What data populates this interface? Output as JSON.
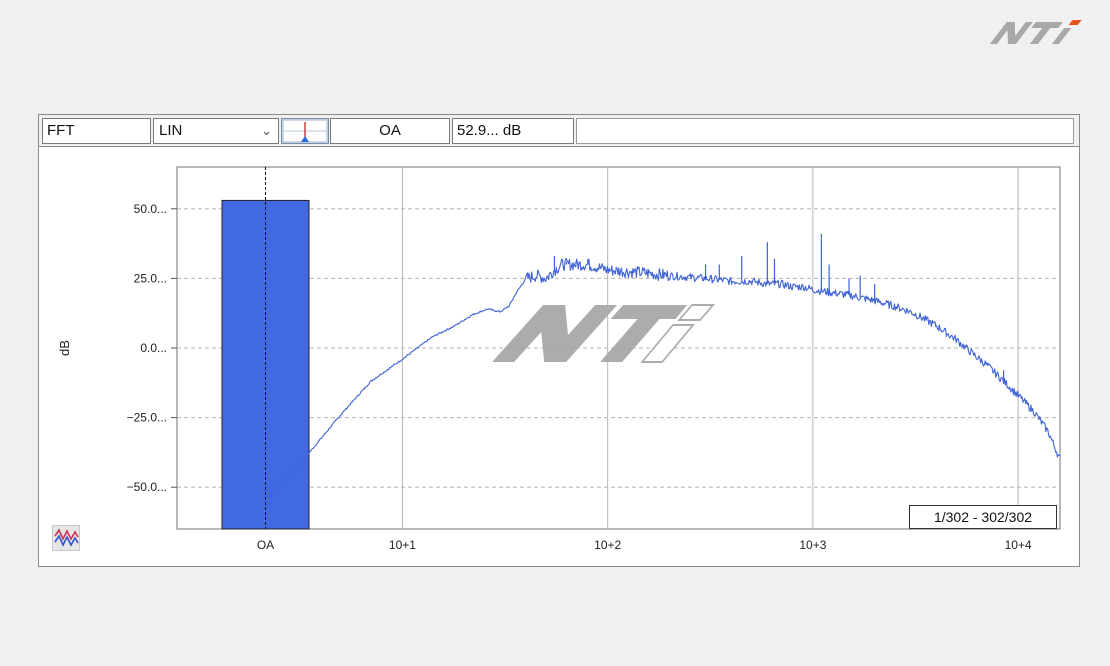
{
  "toolbar": {
    "mode": "FFT",
    "scale": "LIN",
    "band": "OA",
    "value": "52.9... dB"
  },
  "icons": {
    "logo": "nti-logo",
    "cursor": "cursor-marker-icon",
    "scale_dropdown": "chevron-down-icon",
    "spectrum": "spectrum-view-icon"
  },
  "counter": "1/302 - 302/302",
  "colors": {
    "bar": "#4169e1",
    "trace": "#3f63d6",
    "grid": "#b5b5b5",
    "background": "#f0f0f0"
  },
  "chart_data": {
    "type": "bar+line",
    "ylabel": "dB",
    "ylim": [
      -65,
      65
    ],
    "yticks": [
      {
        "value": 50,
        "label": "50.0..."
      },
      {
        "value": 25,
        "label": "25.0..."
      },
      {
        "value": 0,
        "label": "0.0..."
      },
      {
        "value": -25,
        "label": "−25.0..."
      },
      {
        "value": -50,
        "label": "−50.0..."
      }
    ],
    "bar": {
      "category": "OA",
      "value": 53
    },
    "x_scale": "log",
    "xlim_hz": [
      2,
      16000
    ],
    "xticks": [
      {
        "value": 10,
        "label": "10+1"
      },
      {
        "value": 100,
        "label": "10+2"
      },
      {
        "value": 1000,
        "label": "10+3"
      },
      {
        "value": 10000,
        "label": "10+4"
      }
    ],
    "series": [
      {
        "points": [
          [
            2.2,
            -54
          ],
          [
            3.3,
            -40
          ],
          [
            5,
            -24
          ],
          [
            7,
            -12
          ],
          [
            10,
            -4
          ],
          [
            14,
            4
          ],
          [
            18,
            8
          ],
          [
            22,
            12
          ],
          [
            26,
            14
          ],
          [
            30,
            13
          ],
          [
            33,
            15
          ],
          [
            36,
            20
          ],
          [
            40,
            25
          ],
          [
            45,
            26
          ],
          [
            50,
            25
          ],
          [
            55,
            28
          ],
          [
            60,
            30
          ],
          [
            70,
            30
          ],
          [
            80,
            30
          ],
          [
            100,
            28
          ],
          [
            150,
            27
          ],
          [
            200,
            26
          ],
          [
            300,
            25
          ],
          [
            400,
            24
          ],
          [
            500,
            24
          ],
          [
            600,
            23
          ],
          [
            700,
            23
          ],
          [
            800,
            22
          ],
          [
            900,
            22
          ],
          [
            1000,
            21
          ],
          [
            1200,
            20
          ],
          [
            1500,
            19
          ],
          [
            2000,
            17
          ],
          [
            2500,
            15
          ],
          [
            3000,
            13
          ],
          [
            4000,
            8
          ],
          [
            5000,
            3
          ],
          [
            6000,
            -2
          ],
          [
            7000,
            -6
          ],
          [
            8000,
            -10
          ],
          [
            10000,
            -17
          ],
          [
            12000,
            -23
          ],
          [
            14000,
            -30
          ],
          [
            16000,
            -40
          ]
        ],
        "peaks": [
          [
            55,
            33
          ],
          [
            63,
            31
          ],
          [
            70,
            31
          ],
          [
            80,
            32
          ],
          [
            300,
            30
          ],
          [
            350,
            30
          ],
          [
            450,
            33
          ],
          [
            600,
            38
          ],
          [
            650,
            32
          ],
          [
            1100,
            41
          ],
          [
            1200,
            30
          ],
          [
            1500,
            25
          ],
          [
            1700,
            26
          ],
          [
            2000,
            23
          ],
          [
            8500,
            -8
          ]
        ]
      }
    ]
  }
}
